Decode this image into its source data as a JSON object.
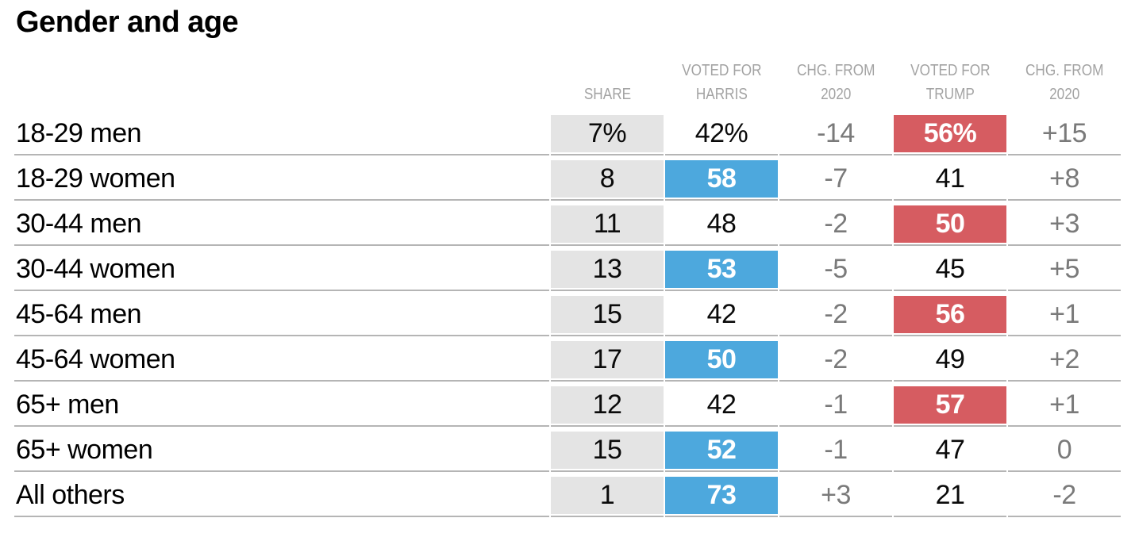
{
  "title": "Gender and age",
  "colors": {
    "harris_blue": "#4da8dd",
    "trump_red": "#d65c61",
    "share_cell_gray": "#e4e4e4",
    "header_text_gray": "#a3a3a3",
    "change_text_gray": "#7a7a7a",
    "divider_gray": "#b5b5b5",
    "text_black": "#000000",
    "winner_text_white": "#ffffff"
  },
  "table": {
    "columns": [
      "SHARE",
      "VOTED FOR\nHARRIS",
      "CHG. FROM\n2020",
      "VOTED FOR\nTRUMP",
      "CHG. FROM\n2020"
    ],
    "rows": [
      {
        "label": "18-29 men",
        "share": "7%",
        "harris": "42%",
        "harris_chg": "-14",
        "trump": "56%",
        "trump_chg": "+15",
        "winner": "trump"
      },
      {
        "label": "18-29 women",
        "share": "8",
        "harris": "58",
        "harris_chg": "-7",
        "trump": "41",
        "trump_chg": "+8",
        "winner": "harris"
      },
      {
        "label": "30-44 men",
        "share": "11",
        "harris": "48",
        "harris_chg": "-2",
        "trump": "50",
        "trump_chg": "+3",
        "winner": "trump"
      },
      {
        "label": "30-44 women",
        "share": "13",
        "harris": "53",
        "harris_chg": "-5",
        "trump": "45",
        "trump_chg": "+5",
        "winner": "harris"
      },
      {
        "label": "45-64 men",
        "share": "15",
        "harris": "42",
        "harris_chg": "-2",
        "trump": "56",
        "trump_chg": "+1",
        "winner": "trump"
      },
      {
        "label": "45-64 women",
        "share": "17",
        "harris": "50",
        "harris_chg": "-2",
        "trump": "49",
        "trump_chg": "+2",
        "winner": "harris"
      },
      {
        "label": "65+ men",
        "share": "12",
        "harris": "42",
        "harris_chg": "-1",
        "trump": "57",
        "trump_chg": "+1",
        "winner": "trump"
      },
      {
        "label": "65+ women",
        "share": "15",
        "harris": "52",
        "harris_chg": "-1",
        "trump": "47",
        "trump_chg": "0",
        "winner": "harris"
      },
      {
        "label": "All others",
        "share": "1",
        "harris": "73",
        "harris_chg": "+3",
        "trump": "21",
        "trump_chg": "-2",
        "winner": "harris"
      }
    ]
  },
  "chart_data": {
    "type": "table",
    "title": "Gender and age",
    "columns": [
      "SHARE",
      "VOTED FOR HARRIS",
      "CHG. FROM 2020",
      "VOTED FOR TRUMP",
      "CHG. FROM 2020"
    ],
    "categories": [
      "18-29 men",
      "18-29 women",
      "30-44 men",
      "30-44 women",
      "45-64 men",
      "45-64 women",
      "65+ men",
      "65+ women",
      "All others"
    ],
    "series": [
      {
        "name": "Share of electorate (%)",
        "values": [
          7,
          8,
          11,
          13,
          15,
          17,
          12,
          15,
          1
        ]
      },
      {
        "name": "Voted for Harris (%)",
        "values": [
          42,
          58,
          48,
          53,
          42,
          50,
          42,
          52,
          73
        ]
      },
      {
        "name": "Harris chg. from 2020",
        "values": [
          -14,
          -7,
          -2,
          -5,
          -2,
          -2,
          -1,
          -1,
          3
        ]
      },
      {
        "name": "Voted for Trump (%)",
        "values": [
          56,
          41,
          50,
          45,
          56,
          49,
          57,
          47,
          21
        ]
      },
      {
        "name": "Trump chg. from 2020",
        "values": [
          15,
          8,
          3,
          5,
          1,
          2,
          1,
          0,
          -2
        ]
      }
    ],
    "winner_by_row": [
      "trump",
      "harris",
      "trump",
      "harris",
      "trump",
      "harris",
      "trump",
      "harris",
      "harris"
    ],
    "layout_hints": {
      "winner_cell_highlight": {
        "harris": "#4da8dd",
        "trump": "#d65c61"
      },
      "share_column_background": "#e4e4e4",
      "grid": "horizontal row dividers only"
    }
  }
}
